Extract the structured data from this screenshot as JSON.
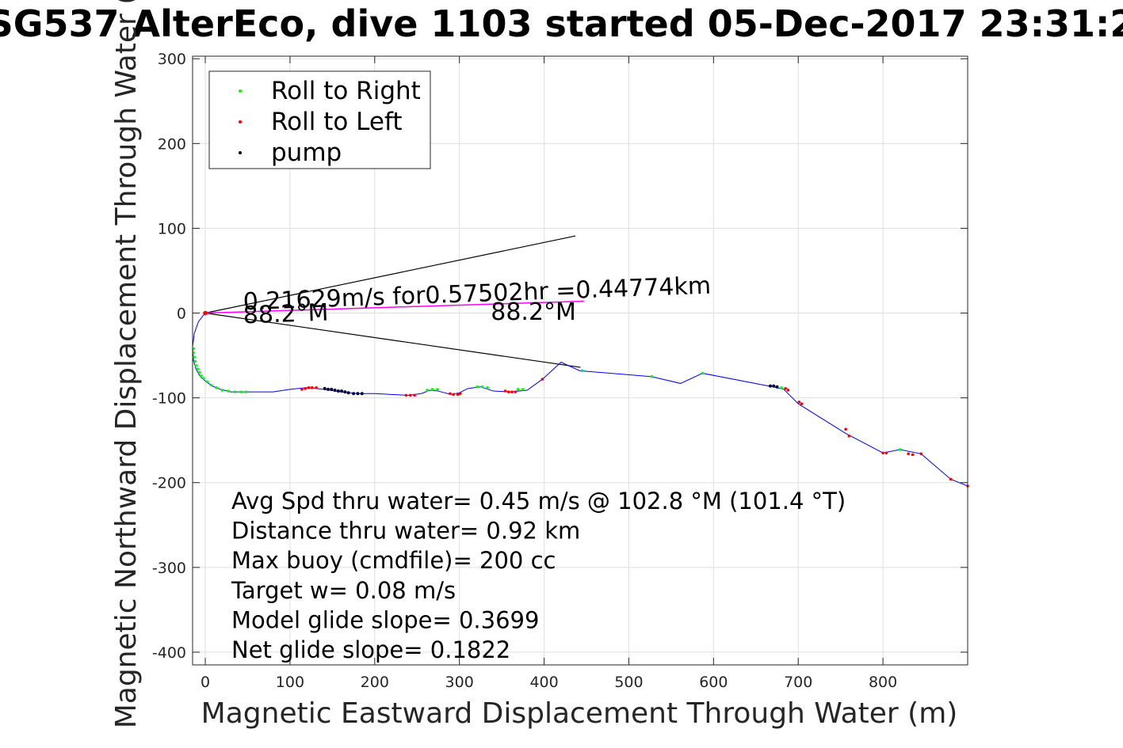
{
  "chart_data": {
    "type": "line",
    "title": "SG537 AlterEco, dive 1103 started 05-Dec-2017 23:31:2",
    "xlabel": "Magnetic Eastward Displacement Through Water (m)",
    "ylabel": "Magnetic Northward Displacement Through Water (",
    "xlim": [
      -15,
      900
    ],
    "ylim": [
      -415,
      303
    ],
    "xticks": [
      0,
      100,
      200,
      300,
      400,
      500,
      600,
      700,
      800
    ],
    "yticks": [
      300,
      200,
      100,
      0,
      -100,
      -200,
      -300,
      -400
    ],
    "grid": true,
    "legend_placement": "top-left",
    "legend": [
      {
        "label": "Roll to Right",
        "color": "#00ff00"
      },
      {
        "label": "Roll to Left",
        "color": "#ff0000"
      },
      {
        "label": "pump",
        "color": "#000000"
      }
    ],
    "track": {
      "color": "#0000ff",
      "x": [
        -1,
        -8,
        -13,
        -15,
        -14,
        -11,
        -6,
        0,
        8,
        18,
        30,
        45,
        60,
        80,
        100,
        120,
        140,
        160,
        180,
        200,
        220,
        240,
        255,
        265,
        275,
        290,
        300,
        310,
        325,
        340,
        360,
        380,
        398,
        420,
        442,
        527,
        561,
        587,
        670,
        683,
        700,
        756,
        800,
        820,
        845,
        880,
        900
      ],
      "y": [
        -1,
        -10,
        -24,
        -40,
        -56,
        -66,
        -75,
        -80,
        -86,
        -90,
        -93,
        -93,
        -93,
        -93,
        -90,
        -88,
        -90,
        -93,
        -95,
        -95,
        -96,
        -97,
        -95,
        -91,
        -92,
        -96,
        -94,
        -89,
        -87,
        -92,
        -93,
        -91,
        -78,
        -58,
        -68,
        -75,
        -83,
        -71,
        -87,
        -90,
        -107,
        -142,
        -165,
        -161,
        -166,
        -196,
        -204
      ]
    },
    "roll_right": {
      "x": [
        -14,
        -14,
        -13,
        -12,
        -11,
        -9,
        -7,
        -5,
        -2,
        2,
        7,
        13,
        20,
        27,
        35,
        42,
        48,
        262,
        268,
        274,
        321,
        327,
        333,
        369,
        375,
        445,
        527,
        587,
        680,
        820
      ],
      "y": [
        -42,
        -47,
        -52,
        -57,
        -62,
        -66,
        -70,
        -74,
        -77,
        -81,
        -85,
        -88,
        -91,
        -92,
        -93,
        -93,
        -93,
        -91,
        -90,
        -90,
        -87,
        -87,
        -88,
        -90,
        -90,
        -68,
        -75,
        -71,
        -88,
        -161
      ]
    },
    "roll_left": {
      "x": [
        114,
        118,
        122,
        126,
        131,
        237,
        242,
        247,
        289,
        293,
        298,
        301,
        354,
        358,
        362,
        366,
        398,
        685,
        688,
        701,
        704,
        756,
        760,
        800,
        804,
        830,
        835,
        845,
        880,
        900
      ],
      "y": [
        -90,
        -89,
        -88,
        -88,
        -88,
        -97,
        -97,
        -97,
        -95,
        -96,
        -96,
        -95,
        -92,
        -93,
        -93,
        -93,
        -78,
        -89,
        -91,
        -105,
        -107,
        -137,
        -145,
        -165,
        -165,
        -166,
        -167,
        -166,
        -196,
        -204
      ]
    },
    "pump": {
      "x": [
        141,
        145,
        149,
        153,
        157,
        161,
        165,
        169,
        175,
        180,
        185,
        667,
        671,
        675
      ],
      "y": [
        -89,
        -90,
        -90,
        -91,
        -92,
        -92,
        -93,
        -94,
        -95,
        -95,
        -95,
        -86,
        -86,
        -87
      ]
    },
    "pump_start": {
      "x": 0,
      "y": 0
    },
    "heading_line": {
      "color": "#ff00ff",
      "x": [
        0,
        447
      ],
      "y": [
        0,
        14
      ]
    },
    "heading_wedge": {
      "x": [
        0,
        437,
        0,
        443
      ],
      "y": [
        0,
        91,
        0,
        -64
      ]
    },
    "annotations": [
      {
        "text": "0.21629m/s for0.57502hr =0.44774km",
        "x": 45,
        "y": 4,
        "angle": -2
      },
      {
        "text": "88.2°M",
        "x": 45,
        "y": -12,
        "angle": -2
      },
      {
        "text": "88.2°M",
        "x": 337,
        "y": -8,
        "angle": 0
      }
    ],
    "stats": [
      "Avg Spd thru water=  0.45 m/s @ 102.8 °M (101.4 °T)",
      "Distance thru water=  0.92 km",
      "Max buoy (cmdfile)= 200 cc",
      "Target w= 0.08 m/s",
      "Model glide slope= 0.3699",
      "Net glide slope= 0.1822"
    ]
  }
}
